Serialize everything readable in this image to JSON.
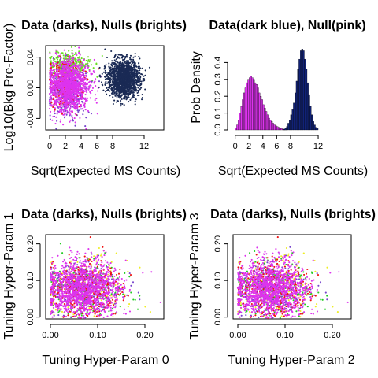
{
  "chart_data": [
    {
      "type": "scatter",
      "title": "Data (darks), Nulls (brights)",
      "xlabel": "Sqrt(Expected MS Counts)",
      "ylabel": "Log10(Bkg Pre-Factor)",
      "xlim": [
        -0.5,
        14.5
      ],
      "ylim": [
        -0.055,
        0.055
      ],
      "xticks": [
        "0",
        "2",
        "4",
        "6",
        "8",
        "12"
      ],
      "xtick_values": [
        0,
        2,
        4,
        6,
        8,
        12
      ],
      "yticks": [
        "-0.04",
        "0.00",
        "0.04"
      ],
      "ytick_values": [
        -0.04,
        0,
        0.04
      ],
      "series": [
        {
          "color": "#66dd22",
          "cx": 2.5,
          "cy": 0.03,
          "sx": 1.3,
          "sy": 0.008,
          "n": 350
        },
        {
          "color": "#7744cc",
          "cx": 2.2,
          "cy": -0.005,
          "sx": 1.3,
          "sy": 0.017,
          "n": 400
        },
        {
          "color": "#ee1111",
          "cx": 2.0,
          "cy": 0.005,
          "sx": 1.2,
          "sy": 0.016,
          "n": 250
        },
        {
          "color": "#dd33ee",
          "cx": 2.4,
          "cy": 0.003,
          "sx": 1.3,
          "sy": 0.017,
          "n": 1300
        },
        {
          "color": "#1a2a55",
          "cx": 9.4,
          "cy": 0.012,
          "sx": 1.0,
          "sy": 0.012,
          "n": 1600
        }
      ]
    },
    {
      "type": "bar",
      "title": "Data(dark blue), Null(pink)",
      "xlabel": "Sqrt(Expected MS Counts)",
      "ylabel": "Prob Density",
      "xlim": [
        -0.3,
        14.5
      ],
      "ylim": [
        0,
        0.5
      ],
      "xticks": [
        "0",
        "2",
        "4",
        "6",
        "8",
        "12"
      ],
      "xtick_values": [
        0,
        2,
        4,
        6,
        8,
        12
      ],
      "yticks": [
        "0.0",
        "0.1",
        "0.2",
        "0.3",
        "0.4"
      ],
      "ytick_values": [
        0,
        0.1,
        0.2,
        0.3,
        0.4
      ],
      "series": [
        {
          "color": "#dd33ee",
          "bin_start": 0.0,
          "bin_width": 0.2,
          "values": [
            0.01,
            0.03,
            0.06,
            0.1,
            0.14,
            0.18,
            0.22,
            0.25,
            0.28,
            0.3,
            0.31,
            0.32,
            0.31,
            0.3,
            0.28,
            0.27,
            0.25,
            0.22,
            0.2,
            0.18,
            0.15,
            0.13,
            0.11,
            0.09,
            0.07,
            0.06,
            0.05,
            0.04,
            0.03,
            0.025,
            0.02,
            0.015,
            0.01,
            0.008,
            0.005,
            0.003,
            0.002
          ]
        },
        {
          "color": "#112277",
          "bin_start": 7.0,
          "bin_width": 0.2,
          "values": [
            0.005,
            0.01,
            0.02,
            0.04,
            0.06,
            0.09,
            0.12,
            0.16,
            0.22,
            0.29,
            0.36,
            0.42,
            0.47,
            0.48,
            0.47,
            0.42,
            0.36,
            0.28,
            0.21,
            0.14,
            0.09,
            0.05,
            0.03,
            0.015,
            0.008
          ]
        }
      ]
    },
    {
      "type": "scatter",
      "title": "Data (darks), Nulls (brights)",
      "xlabel": "Tuning Hyper-Param 0",
      "ylabel": "Tuning Hyper-Param 1",
      "xlim": [
        -0.01,
        0.24
      ],
      "ylim": [
        -0.005,
        0.225
      ],
      "xticks": [
        "0.00",
        "0.10",
        "0.20"
      ],
      "xtick_values": [
        0,
        0.1,
        0.2
      ],
      "yticks": [
        "0.00",
        "0.10",
        "0.20"
      ],
      "ytick_values": [
        0,
        0.1,
        0.2
      ],
      "series": [
        {
          "color": "#eeee22",
          "cx": 0.075,
          "cy": 0.075,
          "sx": 0.045,
          "sy": 0.045,
          "n": 220
        },
        {
          "color": "#22cc22",
          "cx": 0.075,
          "cy": 0.075,
          "sx": 0.04,
          "sy": 0.04,
          "n": 260
        },
        {
          "color": "#7744cc",
          "cx": 0.07,
          "cy": 0.075,
          "sx": 0.04,
          "sy": 0.04,
          "n": 300
        },
        {
          "color": "#ee1111",
          "cx": 0.07,
          "cy": 0.075,
          "sx": 0.04,
          "sy": 0.04,
          "n": 420
        },
        {
          "color": "#dd33ee",
          "cx": 0.07,
          "cy": 0.075,
          "sx": 0.038,
          "sy": 0.038,
          "n": 1400
        }
      ]
    },
    {
      "type": "scatter",
      "title": "Data (darks), Nulls (brights)",
      "xlabel": "Tuning Hyper-Param 2",
      "ylabel": "Tuning Hyper-Param 3",
      "xlim": [
        -0.01,
        0.24
      ],
      "ylim": [
        -0.005,
        0.225
      ],
      "xticks": [
        "0.00",
        "0.10",
        "0.20"
      ],
      "xtick_values": [
        0,
        0.1,
        0.2
      ],
      "yticks": [
        "0.00",
        "0.10",
        "0.20"
      ],
      "ytick_values": [
        0,
        0.1,
        0.2
      ],
      "series": [
        {
          "color": "#eeee22",
          "cx": 0.075,
          "cy": 0.075,
          "sx": 0.045,
          "sy": 0.045,
          "n": 220
        },
        {
          "color": "#22cc22",
          "cx": 0.075,
          "cy": 0.075,
          "sx": 0.04,
          "sy": 0.04,
          "n": 260
        },
        {
          "color": "#7744cc",
          "cx": 0.07,
          "cy": 0.075,
          "sx": 0.04,
          "sy": 0.04,
          "n": 300
        },
        {
          "color": "#ee1111",
          "cx": 0.07,
          "cy": 0.075,
          "sx": 0.04,
          "sy": 0.04,
          "n": 420
        },
        {
          "color": "#dd33ee",
          "cx": 0.07,
          "cy": 0.075,
          "sx": 0.038,
          "sy": 0.038,
          "n": 1400
        }
      ]
    }
  ]
}
